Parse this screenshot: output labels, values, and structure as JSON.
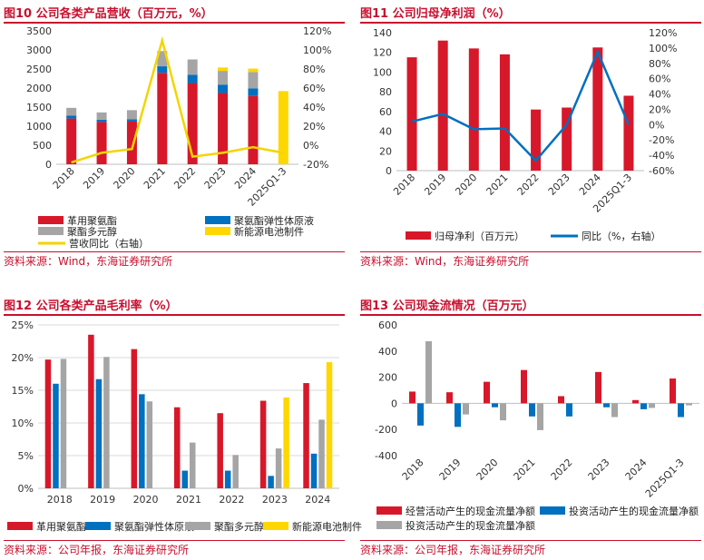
{
  "colors": {
    "red": "#d7182a",
    "blue": "#0070c0",
    "gray": "#a5a5a5",
    "yellow": "#ffd700",
    "line_yellow": "#f2d500",
    "title_red": "#c8102e"
  },
  "chart_data": [
    {
      "id": "fig10",
      "type": "bar",
      "stacked": true,
      "title": "图10  公司各类产品营收（百万元，%）",
      "categories": [
        "2018",
        "2019",
        "2020",
        "2021",
        "2022",
        "2023",
        "2024",
        "2025Q1-3"
      ],
      "series": [
        {
          "name": "革用聚氨酯",
          "color": "red",
          "values": [
            1200,
            1110,
            1120,
            2400,
            2130,
            1870,
            1790,
            0
          ]
        },
        {
          "name": "聚氨酯弹性体原液",
          "color": "blue",
          "values": [
            80,
            60,
            60,
            170,
            220,
            220,
            200,
            0
          ]
        },
        {
          "name": "聚酯多元醇",
          "color": "gray",
          "values": [
            200,
            190,
            240,
            400,
            400,
            360,
            430,
            0
          ]
        },
        {
          "name": "新能源电池制件",
          "color": "yellow",
          "values": [
            0,
            0,
            0,
            0,
            0,
            90,
            90,
            1920
          ]
        }
      ],
      "line": {
        "name": "营收同比（右轴）",
        "color": "line_yellow",
        "values": [
          -18,
          -8,
          -4,
          110,
          -12,
          -8,
          -2,
          -8
        ]
      },
      "y_left": {
        "min": 0,
        "max": 3500,
        "ticks": [
          "0",
          "500",
          "1000",
          "1500",
          "2000",
          "2500",
          "3000",
          "3500"
        ]
      },
      "y_right": {
        "min": -20,
        "max": 120,
        "ticks": [
          "-20%",
          "0%",
          "20%",
          "40%",
          "60%",
          "80%",
          "100%",
          "120%"
        ]
      },
      "legend": [
        {
          "label": "革用聚氨酯",
          "color": "red",
          "kind": "bar"
        },
        {
          "label": "聚氨酯弹性体原液",
          "color": "blue",
          "kind": "bar"
        },
        {
          "label": "聚酯多元醇",
          "color": "gray",
          "kind": "bar"
        },
        {
          "label": "新能源电池制件",
          "color": "yellow",
          "kind": "bar"
        },
        {
          "label": "营收同比（右轴）",
          "color": "line_yellow",
          "kind": "line"
        }
      ],
      "source": "资料来源：Wind，东海证券研究所"
    },
    {
      "id": "fig11",
      "type": "bar",
      "title": "图11  公司归母净利润（%）",
      "categories": [
        "2018",
        "2019",
        "2020",
        "2021",
        "2022",
        "2023",
        "2024",
        "2025Q1-3"
      ],
      "series": [
        {
          "name": "归母净利（百万元）",
          "color": "red",
          "values": [
            115,
            132,
            124,
            118,
            62,
            64,
            125,
            76
          ]
        }
      ],
      "line": {
        "name": "同比（%，右轴）",
        "color": "blue",
        "values": [
          4,
          14,
          -6,
          -5,
          -47,
          0,
          95,
          0
        ]
      },
      "y_left": {
        "min": 0,
        "max": 140,
        "ticks": [
          "0",
          "20",
          "40",
          "60",
          "80",
          "100",
          "120",
          "140"
        ]
      },
      "y_right": {
        "min": -60,
        "max": 120,
        "ticks": [
          "-60%",
          "-40%",
          "-20%",
          "0%",
          "20%",
          "40%",
          "60%",
          "80%",
          "100%",
          "120%"
        ]
      },
      "legend": [
        {
          "label": "归母净利（百万元）",
          "color": "red",
          "kind": "bar"
        },
        {
          "label": "同比（%，右轴）",
          "color": "blue",
          "kind": "line"
        }
      ],
      "source": "资料来源：Wind，东海证券研究所"
    },
    {
      "id": "fig12",
      "type": "bar",
      "title": "图12  公司各类产品毛利率（%）",
      "categories": [
        "2018",
        "2019",
        "2020",
        "2021",
        "2022",
        "2023",
        "2024"
      ],
      "series": [
        {
          "name": "革用聚氨酯",
          "color": "red",
          "values": [
            19.7,
            23.5,
            21.3,
            12.4,
            11.5,
            13.4,
            16.1
          ]
        },
        {
          "name": "聚氨酯弹性体原液",
          "color": "blue",
          "values": [
            16.0,
            16.7,
            14.4,
            2.7,
            2.7,
            1.9,
            5.3
          ]
        },
        {
          "name": "聚酯多元醇",
          "color": "gray",
          "values": [
            19.8,
            20.1,
            13.3,
            7.0,
            5.1,
            6.1,
            10.5
          ]
        },
        {
          "name": "新能源电池制件",
          "color": "yellow",
          "values": [
            null,
            null,
            null,
            null,
            null,
            13.9,
            19.3
          ]
        }
      ],
      "y_left": {
        "min": 0,
        "max": 25,
        "ticks": [
          "0%",
          "5%",
          "10%",
          "15%",
          "20%",
          "25%"
        ]
      },
      "legend": [
        {
          "label": "革用聚氨酯",
          "color": "red",
          "kind": "bar"
        },
        {
          "label": "聚氨酯弹性体原液",
          "color": "blue",
          "kind": "bar"
        },
        {
          "label": "聚酯多元醇",
          "color": "gray",
          "kind": "bar"
        },
        {
          "label": "新能源电池制件",
          "color": "yellow",
          "kind": "bar"
        }
      ],
      "source": "资料来源：公司年报，东海证券研究所"
    },
    {
      "id": "fig13",
      "type": "bar",
      "title": "图13  公司现金流情况（百万元）",
      "categories": [
        "2018",
        "2019",
        "2020",
        "2021",
        "2022",
        "2023",
        "2024",
        "2025Q1-3"
      ],
      "series": [
        {
          "name": "经营活动产生的现金流量净额",
          "color": "red",
          "values": [
            90,
            85,
            165,
            255,
            55,
            240,
            25,
            190
          ]
        },
        {
          "name": "投资活动产生的现金流量净额",
          "color": "blue",
          "values": [
            -170,
            -180,
            -30,
            -100,
            -100,
            -30,
            -45,
            -105
          ]
        },
        {
          "name": "投资活动产生的现金流量净额",
          "color": "gray",
          "values": [
            475,
            -85,
            -130,
            -205,
            0,
            -105,
            -35,
            -15
          ]
        }
      ],
      "y_left": {
        "min": -400,
        "max": 600,
        "ticks": [
          "-400",
          "-200",
          "0",
          "200",
          "400",
          "600"
        ]
      },
      "legend": [
        {
          "label": "经营活动产生的现金流量净额",
          "color": "red",
          "kind": "bar"
        },
        {
          "label": "投资活动产生的现金流量净额",
          "color": "blue",
          "kind": "bar"
        },
        {
          "label": "投资活动产生的现金流量净额",
          "color": "gray",
          "kind": "bar"
        }
      ],
      "source": "资料来源：公司年报，东海证券研究所"
    }
  ]
}
